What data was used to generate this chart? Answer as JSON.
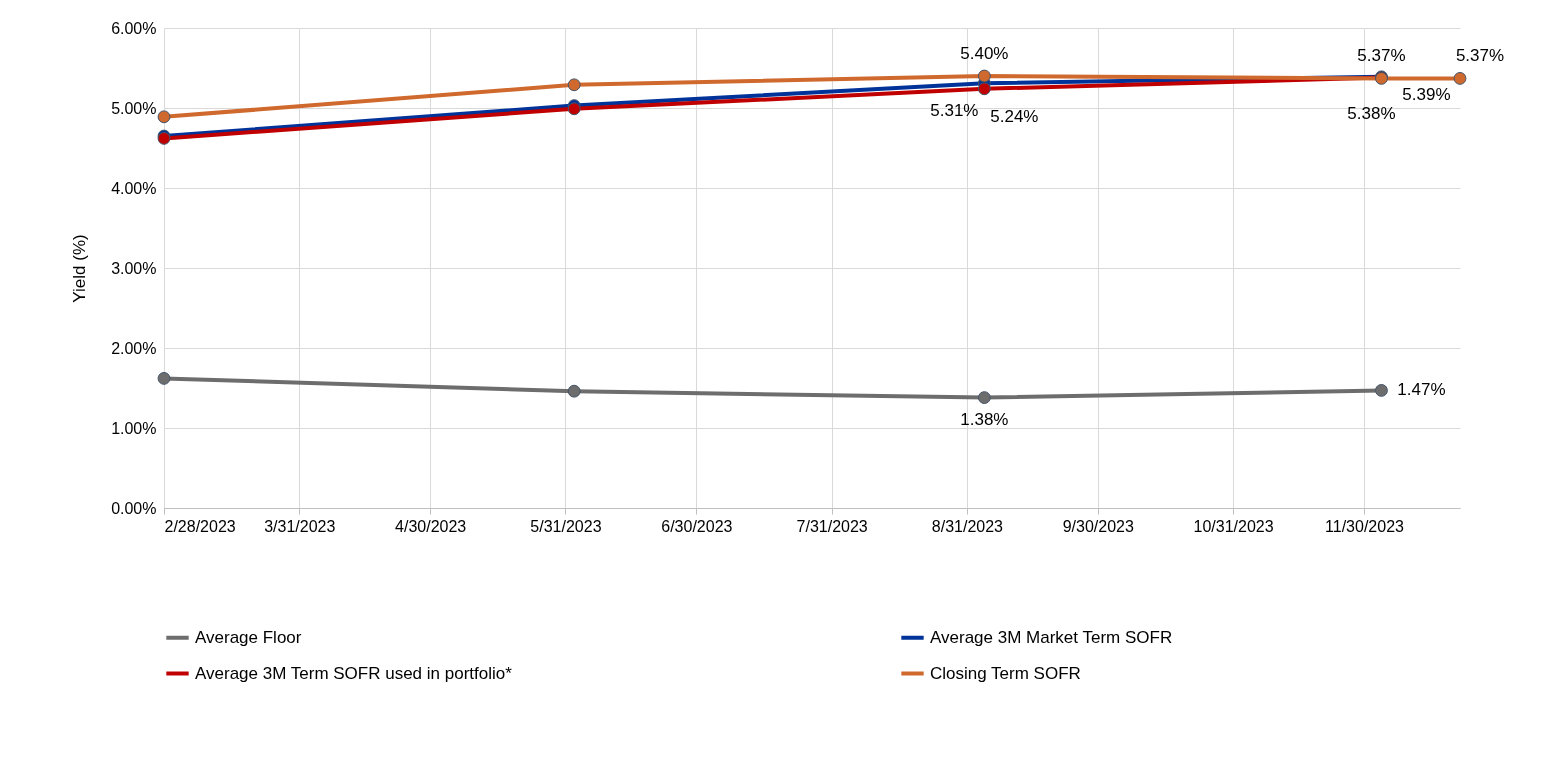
{
  "chart_data": {
    "type": "line",
    "ylabel": "Yield (%)",
    "xlim": [
      "2023-02-28",
      "2023-12-22"
    ],
    "xticks": [
      {
        "value": "2023-02-28",
        "label": "2/28/2023"
      },
      {
        "value": "2023-03-31",
        "label": "3/31/2023"
      },
      {
        "value": "2023-04-30",
        "label": "4/30/2023"
      },
      {
        "value": "2023-05-31",
        "label": "5/31/2023"
      },
      {
        "value": "2023-06-30",
        "label": "6/30/2023"
      },
      {
        "value": "2023-07-31",
        "label": "7/31/2023"
      },
      {
        "value": "2023-08-31",
        "label": "8/31/2023"
      },
      {
        "value": "2023-09-30",
        "label": "9/30/2023"
      },
      {
        "value": "2023-10-31",
        "label": "10/31/2023"
      },
      {
        "value": "2023-11-30",
        "label": "11/30/2023"
      }
    ],
    "ylim": [
      0,
      6
    ],
    "yticks": [
      {
        "value": 0,
        "label": "0.00%"
      },
      {
        "value": 1,
        "label": "1.00%"
      },
      {
        "value": 2,
        "label": "2.00%"
      },
      {
        "value": 3,
        "label": "3.00%"
      },
      {
        "value": 4,
        "label": "4.00%"
      },
      {
        "value": 5,
        "label": "5.00%"
      },
      {
        "value": 6,
        "label": "6.00%"
      }
    ],
    "grid": true,
    "legend": "bottom",
    "marker": "circle",
    "line_style": "solid",
    "series": [
      {
        "name": "Average Floor",
        "color": "#6d6d6d",
        "x": [
          "2023-02-28",
          "2023-06-02",
          "2023-09-04",
          "2023-12-04"
        ],
        "values": [
          1.62,
          1.46,
          1.38,
          1.47
        ],
        "value_labels": [
          null,
          null,
          "1.38%",
          "1.47%"
        ]
      },
      {
        "name": "Average 3M Market Term SOFR",
        "color": "#003399",
        "x": [
          "2023-02-28",
          "2023-06-02",
          "2023-09-04",
          "2023-12-04"
        ],
        "values": [
          4.65,
          5.03,
          5.31,
          5.39
        ],
        "value_labels": [
          null,
          null,
          "5.31%",
          "5.39%"
        ]
      },
      {
        "name": "Average 3M Term SOFR used in portfolio*",
        "color": "#c00000",
        "x": [
          "2023-02-28",
          "2023-06-02",
          "2023-09-04",
          "2023-12-04"
        ],
        "values": [
          4.62,
          4.99,
          5.24,
          5.38
        ],
        "value_labels": [
          null,
          null,
          "5.24%",
          "5.38%"
        ]
      },
      {
        "name": "Closing Term SOFR",
        "color": "#d0692e",
        "x": [
          "2023-02-28",
          "2023-06-02",
          "2023-09-04",
          "2023-12-04",
          "2023-12-22"
        ],
        "values": [
          4.89,
          5.29,
          5.4,
          5.37,
          5.37
        ],
        "value_labels": [
          null,
          null,
          "5.40%",
          "5.37%",
          "5.37%"
        ]
      }
    ]
  }
}
